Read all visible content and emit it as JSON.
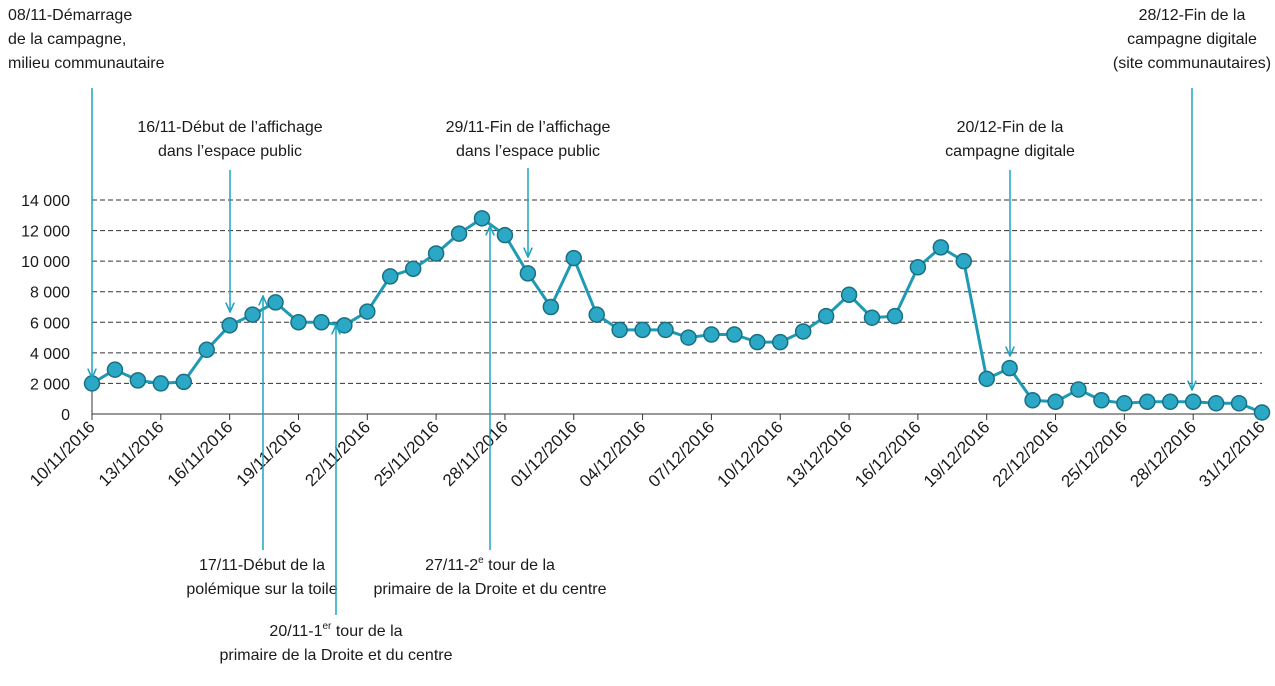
{
  "chart_data": {
    "type": "line",
    "categories": [
      "10/11/2016",
      null,
      null,
      "13/11/2016",
      null,
      null,
      "16/11/2016",
      null,
      null,
      "19/11/2016",
      null,
      null,
      "22/11/2016",
      null,
      null,
      "25/11/2016",
      null,
      null,
      "28/11/2016",
      null,
      null,
      "01/12/2016",
      null,
      null,
      "04/12/2016",
      null,
      null,
      "07/12/2016",
      null,
      null,
      "10/12/2016",
      null,
      null,
      "13/12/2016",
      null,
      null,
      "16/12/2016",
      null,
      null,
      "19/12/2016",
      null,
      null,
      "22/12/2016",
      null,
      null,
      "25/12/2016",
      null,
      null,
      "28/12/2016",
      null,
      null,
      "31/12/2016"
    ],
    "series": [
      {
        "color": "#1f9ab5",
        "values": [
          2000,
          2900,
          2200,
          2000,
          2100,
          4200,
          5800,
          6500,
          7300,
          6000,
          6000,
          5800,
          6700,
          9000,
          9500,
          10500,
          11800,
          12800,
          11700,
          9200,
          7000,
          10200,
          6500,
          5500,
          5500,
          5500,
          5000,
          5200,
          5200,
          4700,
          4700,
          5400,
          6400,
          7800,
          6300,
          6400,
          9600,
          10900,
          10000,
          2300,
          3000,
          900,
          800,
          1600,
          900,
          700,
          800,
          800,
          800,
          700,
          700,
          100
        ]
      }
    ],
    "ylim": [
      0,
      14000
    ],
    "yticks": [
      0,
      {
        "value": 2000,
        "label": "2 000"
      },
      {
        "value": 4000,
        "label": "4 000"
      },
      {
        "value": 6000,
        "label": "6 000"
      },
      {
        "value": 8000,
        "label": "8 000"
      },
      {
        "value": 10000,
        "label": "10 000"
      },
      {
        "value": 12000,
        "label": "12 000"
      },
      {
        "value": 14000,
        "label": "14 000"
      }
    ],
    "grid": true,
    "annotations": [
      {
        "lines": [
          "08/11-Démarrage",
          "de la campagne,",
          "milieu communautaire"
        ]
      },
      {
        "lines": [
          "16/11-Début de l’affichage",
          "dans l’espace public"
        ]
      },
      {
        "lines": [
          "29/11-Fin de l’affichage",
          "dans l’espace public"
        ]
      },
      {
        "lines": [
          "20/12-Fin de la",
          "campagne digitale"
        ]
      },
      {
        "lines": [
          "28/12-Fin de la",
          "campagne digitale",
          "(site communautaires)"
        ]
      },
      {
        "lines": [
          "17/11-Début de la",
          "polémique sur la toile"
        ]
      },
      {
        "lines": [
          {
            "text": "27/11-2",
            "sup": "e",
            "after": " tour de la"
          },
          "primaire de la Droite et du centre"
        ]
      },
      {
        "lines": [
          {
            "text": "20/11-1",
            "sup": "er",
            "after": " tour de la"
          },
          "primaire de la Droite et du centre"
        ]
      }
    ]
  }
}
